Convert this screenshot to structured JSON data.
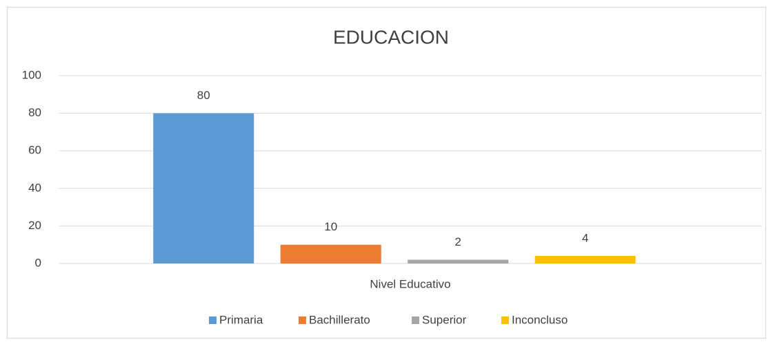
{
  "chart_data": {
    "type": "bar",
    "title": "EDUCACION",
    "categories": [
      "Nivel Educativo"
    ],
    "series": [
      {
        "name": "Primaria",
        "color": "#5b9bd5",
        "values": [
          80
        ]
      },
      {
        "name": "Bachillerato",
        "color": "#ed7d31",
        "values": [
          10
        ]
      },
      {
        "name": "Superior",
        "color": "#a5a5a5",
        "values": [
          2
        ]
      },
      {
        "name": "Inconcluso",
        "color": "#ffc000",
        "values": [
          4
        ]
      }
    ],
    "ylim": [
      0,
      100
    ],
    "yticks": [
      0,
      20,
      40,
      60,
      80,
      100
    ],
    "grid": true,
    "legend": "bottom"
  }
}
